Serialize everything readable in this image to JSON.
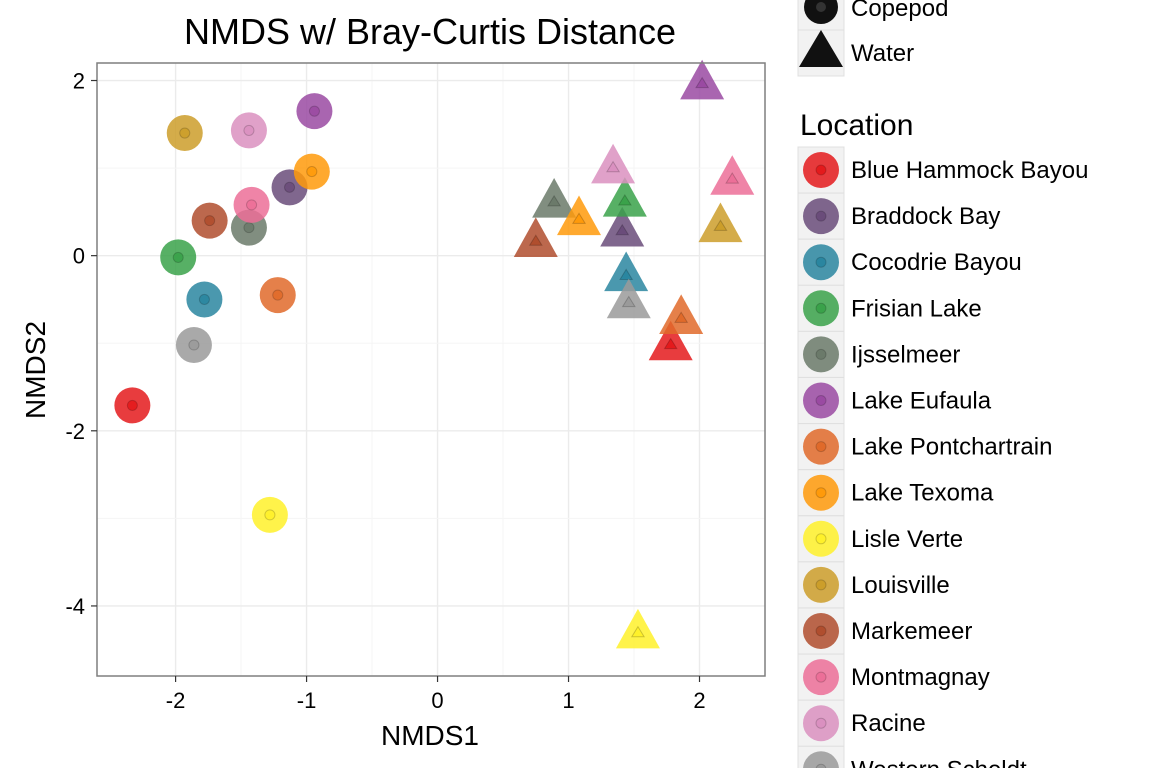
{
  "chart_data": {
    "type": "scatter",
    "title": "NMDS w/ Bray-Curtis Distance",
    "xlabel": "NMDS1",
    "ylabel": "NMDS2",
    "xlim": [
      -2.6,
      2.5
    ],
    "ylim": [
      -4.8,
      2.2
    ],
    "xticks": [
      -2,
      -1,
      0,
      1,
      2
    ],
    "xtick_labels": [
      "-2",
      "-1",
      "0",
      "1",
      "2"
    ],
    "yticks": [
      2,
      0,
      -2,
      -4
    ],
    "ytick_labels": [
      "2",
      "0",
      "-2",
      "-4"
    ],
    "grid": true,
    "legend_position": "right",
    "shape_legend": {
      "title": "",
      "items": [
        {
          "label": "Copepod",
          "shape": "circle"
        },
        {
          "label": "Water",
          "shape": "triangle"
        }
      ]
    },
    "color_legend": {
      "title": "Location",
      "items": [
        {
          "label": "Blue Hammock Bayou",
          "color": "#e41a1c"
        },
        {
          "label": "Braddock Bay",
          "color": "#6a4c7a"
        },
        {
          "label": "Cocodrie Bayou",
          "color": "#2a86a0"
        },
        {
          "label": "Frisian Lake",
          "color": "#3aa24a"
        },
        {
          "label": "Ijsselmeer",
          "color": "#6b7a6a"
        },
        {
          "label": "Lake Eufaula",
          "color": "#9a4aa2"
        },
        {
          "label": "Lake Pontchartrain",
          "color": "#e06a2a"
        },
        {
          "label": "Lake Texoma",
          "color": "#ff9a0a"
        },
        {
          "label": "Lisle Verte",
          "color": "#fff12a"
        },
        {
          "label": "Louisville",
          "color": "#cc9e2a"
        },
        {
          "label": "Markemeer",
          "color": "#b04e2e"
        },
        {
          "label": "Montmagnay",
          "color": "#ec6f98"
        },
        {
          "label": "Racine",
          "color": "#da90c0"
        },
        {
          "label": "Western Scheldt",
          "color": "#9a9a9a"
        }
      ]
    },
    "series": [
      {
        "name": "Copepod",
        "points": [
          {
            "x": -2.33,
            "y": -1.71,
            "location": "Blue Hammock Bayou"
          },
          {
            "x": -1.13,
            "y": 0.78,
            "location": "Braddock Bay"
          },
          {
            "x": -1.78,
            "y": -0.5,
            "location": "Cocodrie Bayou"
          },
          {
            "x": -1.98,
            "y": -0.02,
            "location": "Frisian Lake"
          },
          {
            "x": -1.44,
            "y": 0.32,
            "location": "Ijsselmeer"
          },
          {
            "x": -0.94,
            "y": 1.65,
            "location": "Lake Eufaula"
          },
          {
            "x": -1.22,
            "y": -0.45,
            "location": "Lake Pontchartrain"
          },
          {
            "x": -0.96,
            "y": 0.96,
            "location": "Lake Texoma"
          },
          {
            "x": -1.28,
            "y": -2.96,
            "location": "Lisle Verte"
          },
          {
            "x": -1.93,
            "y": 1.4,
            "location": "Louisville"
          },
          {
            "x": -1.74,
            "y": 0.4,
            "location": "Markemeer"
          },
          {
            "x": -1.42,
            "y": 0.58,
            "location": "Montmagnay"
          },
          {
            "x": -1.44,
            "y": 1.43,
            "location": "Racine"
          },
          {
            "x": -1.86,
            "y": -1.02,
            "location": "Western Scheldt"
          }
        ]
      },
      {
        "name": "Water",
        "points": [
          {
            "x": 1.78,
            "y": -1.01,
            "location": "Blue Hammock Bayou"
          },
          {
            "x": 1.41,
            "y": 0.29,
            "location": "Braddock Bay"
          },
          {
            "x": 1.44,
            "y": -0.22,
            "location": "Cocodrie Bayou"
          },
          {
            "x": 1.43,
            "y": 0.63,
            "location": "Frisian Lake"
          },
          {
            "x": 0.89,
            "y": 0.62,
            "location": "Ijsselmeer"
          },
          {
            "x": 2.02,
            "y": 1.97,
            "location": "Lake Eufaula"
          },
          {
            "x": 1.86,
            "y": -0.71,
            "location": "Lake Pontchartrain"
          },
          {
            "x": 1.08,
            "y": 0.42,
            "location": "Lake Texoma"
          },
          {
            "x": 1.53,
            "y": -4.3,
            "location": "Lisle Verte"
          },
          {
            "x": 2.16,
            "y": 0.34,
            "location": "Louisville"
          },
          {
            "x": 0.75,
            "y": 0.17,
            "location": "Markemeer"
          },
          {
            "x": 2.25,
            "y": 0.88,
            "location": "Montmagnay"
          },
          {
            "x": 1.34,
            "y": 1.01,
            "location": "Racine"
          },
          {
            "x": 1.46,
            "y": -0.53,
            "location": "Western Scheldt"
          }
        ]
      }
    ]
  }
}
